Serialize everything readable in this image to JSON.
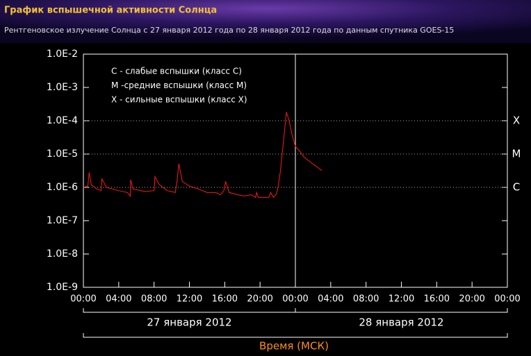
{
  "chart_data": {
    "type": "line",
    "title": "График вспышечной активности Солнца",
    "subtitle": "Рентгеновское излучение Солнца с 27 января 2012 года по 28 января 2012 года по данным спутника GOES-15",
    "x_label": "Время (МСК)",
    "log_y": true,
    "color": "#ff1a1a",
    "x": [
      0,
      0.5,
      0.65,
      0.9,
      1.5,
      2.0,
      2.1,
      2.6,
      4,
      5,
      5.2,
      5.3,
      5.35,
      5.6,
      6.5,
      7,
      8.0,
      8.1,
      8.6,
      9.5,
      10.4,
      10.6,
      10.8,
      11.2,
      12,
      13,
      14,
      15,
      15.5,
      15.9,
      16.1,
      16.5,
      17.5,
      18.2,
      19.0,
      19.5,
      19.6,
      19.8,
      20.5,
      21,
      21.2,
      21.5,
      21.8,
      22.0,
      22.3,
      22.5,
      22.8,
      22.98,
      23.3,
      23.6,
      24,
      24.5,
      25,
      26,
      26.8,
      27.0
    ],
    "values": [
      1e-06,
      1.1e-06,
      2.8e-06,
      1.2e-06,
      9e-07,
      8e-07,
      1.8e-06,
      1e-06,
      8e-07,
      7e-07,
      6e-07,
      5.4e-07,
      1.7e-06,
      9e-07,
      8e-07,
      7.5e-07,
      8e-07,
      2.1e-06,
      1.2e-06,
      8e-07,
      7e-07,
      1.5e-06,
      5.1e-06,
      1.5e-06,
      1.1e-06,
      9e-07,
      7e-07,
      7e-07,
      6e-07,
      8e-07,
      1.5e-06,
      7e-07,
      6e-07,
      5.5e-07,
      6e-07,
      5e-07,
      7e-07,
      5e-07,
      5e-07,
      5e-07,
      7e-07,
      5e-07,
      6e-07,
      9e-07,
      3e-06,
      1e-05,
      6e-05,
      0.00018,
      0.0001,
      4e-05,
      1.7e-05,
      1.2e-05,
      8e-06,
      5e-06,
      3.5e-06,
      3.2e-06
    ],
    "xlim": [
      0,
      48
    ],
    "xticks": [
      {
        "value": 0,
        "label": "00:00"
      },
      {
        "value": 4,
        "label": "04:00"
      },
      {
        "value": 8,
        "label": "08:00"
      },
      {
        "value": 12,
        "label": "12:00"
      },
      {
        "value": 16,
        "label": "16:00"
      },
      {
        "value": 20,
        "label": "20:00"
      },
      {
        "value": 24,
        "label": "00:00"
      },
      {
        "value": 28,
        "label": "04:00"
      },
      {
        "value": 32,
        "label": "08:00"
      },
      {
        "value": 36,
        "label": "12:00"
      },
      {
        "value": 40,
        "label": "16:00"
      },
      {
        "value": 44,
        "label": "20:00"
      },
      {
        "value": 48,
        "label": "00:00"
      }
    ],
    "ylim": [
      1e-09,
      0.01
    ],
    "yticks": [
      {
        "value": 1e-09,
        "label": "1.0E-9"
      },
      {
        "value": 1e-08,
        "label": "1.0E-8"
      },
      {
        "value": 1e-07,
        "label": "1.0E-7"
      },
      {
        "value": 1e-06,
        "label": "1.0E-6"
      },
      {
        "value": 1e-05,
        "label": "1.0E-5"
      },
      {
        "value": 0.0001,
        "label": "1.0E-4"
      },
      {
        "value": 0.001,
        "label": "1.0E-3"
      },
      {
        "value": 0.01,
        "label": "1.0E-2"
      }
    ],
    "class_lines": [
      {
        "value": 0.0001,
        "label": "X"
      },
      {
        "value": 1e-05,
        "label": "M"
      },
      {
        "value": 1e-06,
        "label": "C"
      }
    ],
    "legend_notes": [
      "C - слабые вспышки (класс C)",
      "M -средние вспышки (класс M)",
      "X - сильные вспышки (класс X)"
    ],
    "days": [
      {
        "label": "27 января 2012",
        "from": 0,
        "to": 24
      },
      {
        "label": "28 января 2012",
        "from": 24,
        "to": 48
      }
    ]
  }
}
